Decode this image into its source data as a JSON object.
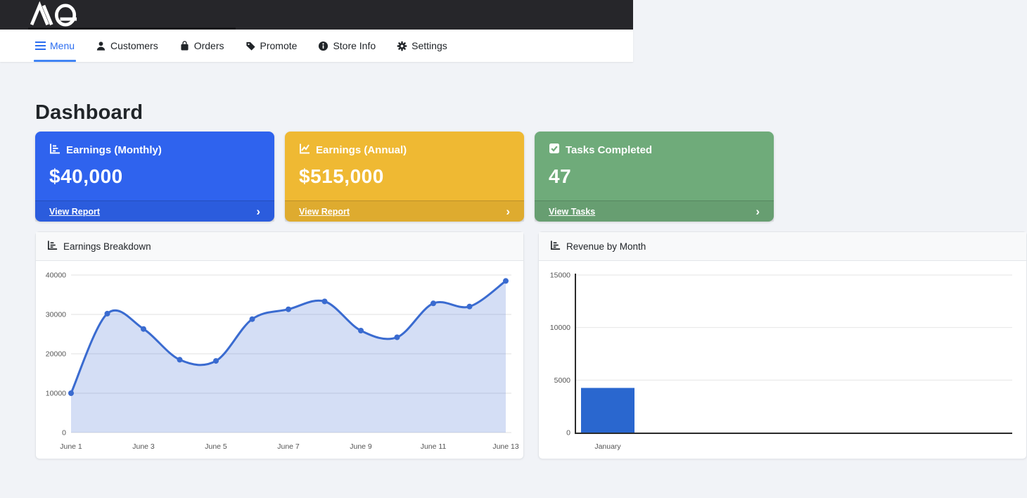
{
  "topbar": {
    "logo_text": "AQ"
  },
  "nav": {
    "items": [
      {
        "label": "Menu",
        "icon": "hamburger-icon",
        "active": true
      },
      {
        "label": "Customers",
        "icon": "person-icon",
        "active": false
      },
      {
        "label": "Orders",
        "icon": "bag-icon",
        "active": false
      },
      {
        "label": "Promote",
        "icon": "tag-icon",
        "active": false
      },
      {
        "label": "Store Info",
        "icon": "info-icon",
        "active": false
      },
      {
        "label": "Settings",
        "icon": "gear-icon",
        "active": false
      }
    ]
  },
  "page": {
    "title": "Dashboard"
  },
  "stat_cards": [
    {
      "title": "Earnings (Monthly)",
      "icon": "bar-chart-icon",
      "value": "$40,000",
      "link": "View Report",
      "color": "#2f63ee"
    },
    {
      "title": "Earnings (Annual)",
      "icon": "line-chart-icon",
      "value": "$515,000",
      "link": "View Report",
      "color": "#efb933"
    },
    {
      "title": "Tasks Completed",
      "icon": "check-square-icon",
      "value": "47",
      "link": "View Tasks",
      "color": "#6fab7a"
    }
  ],
  "chart_data": [
    {
      "type": "line",
      "title": "Earnings Breakdown",
      "x": [
        "June 1",
        "June 2",
        "June 3",
        "June 4",
        "June 5",
        "June 6",
        "June 7",
        "June 8",
        "June 9",
        "June 10",
        "June 11",
        "June 12",
        "June 13"
      ],
      "x_tick_labels_shown": [
        "June 1",
        "June 3",
        "June 5",
        "June 7",
        "June 9",
        "June 11",
        "June 13"
      ],
      "values": [
        10000,
        30200,
        26300,
        18500,
        18200,
        28800,
        31300,
        33300,
        25900,
        24200,
        32800,
        32000,
        38500
      ],
      "ylim": [
        0,
        40000
      ],
      "yticks": [
        0,
        10000,
        20000,
        30000,
        40000
      ],
      "line_color": "#3a6bd0",
      "fill_color": "rgba(58,107,208,0.22)",
      "grid": true,
      "smooth": true,
      "point_markers": true,
      "legend": "none"
    },
    {
      "type": "bar",
      "title": "Revenue by Month",
      "categories": [
        "January"
      ],
      "values": [
        4250
      ],
      "ylim": [
        0,
        15000
      ],
      "yticks": [
        0,
        5000,
        10000,
        15000
      ],
      "bar_color": "#2a67cf",
      "grid": true,
      "legend": "none"
    }
  ]
}
